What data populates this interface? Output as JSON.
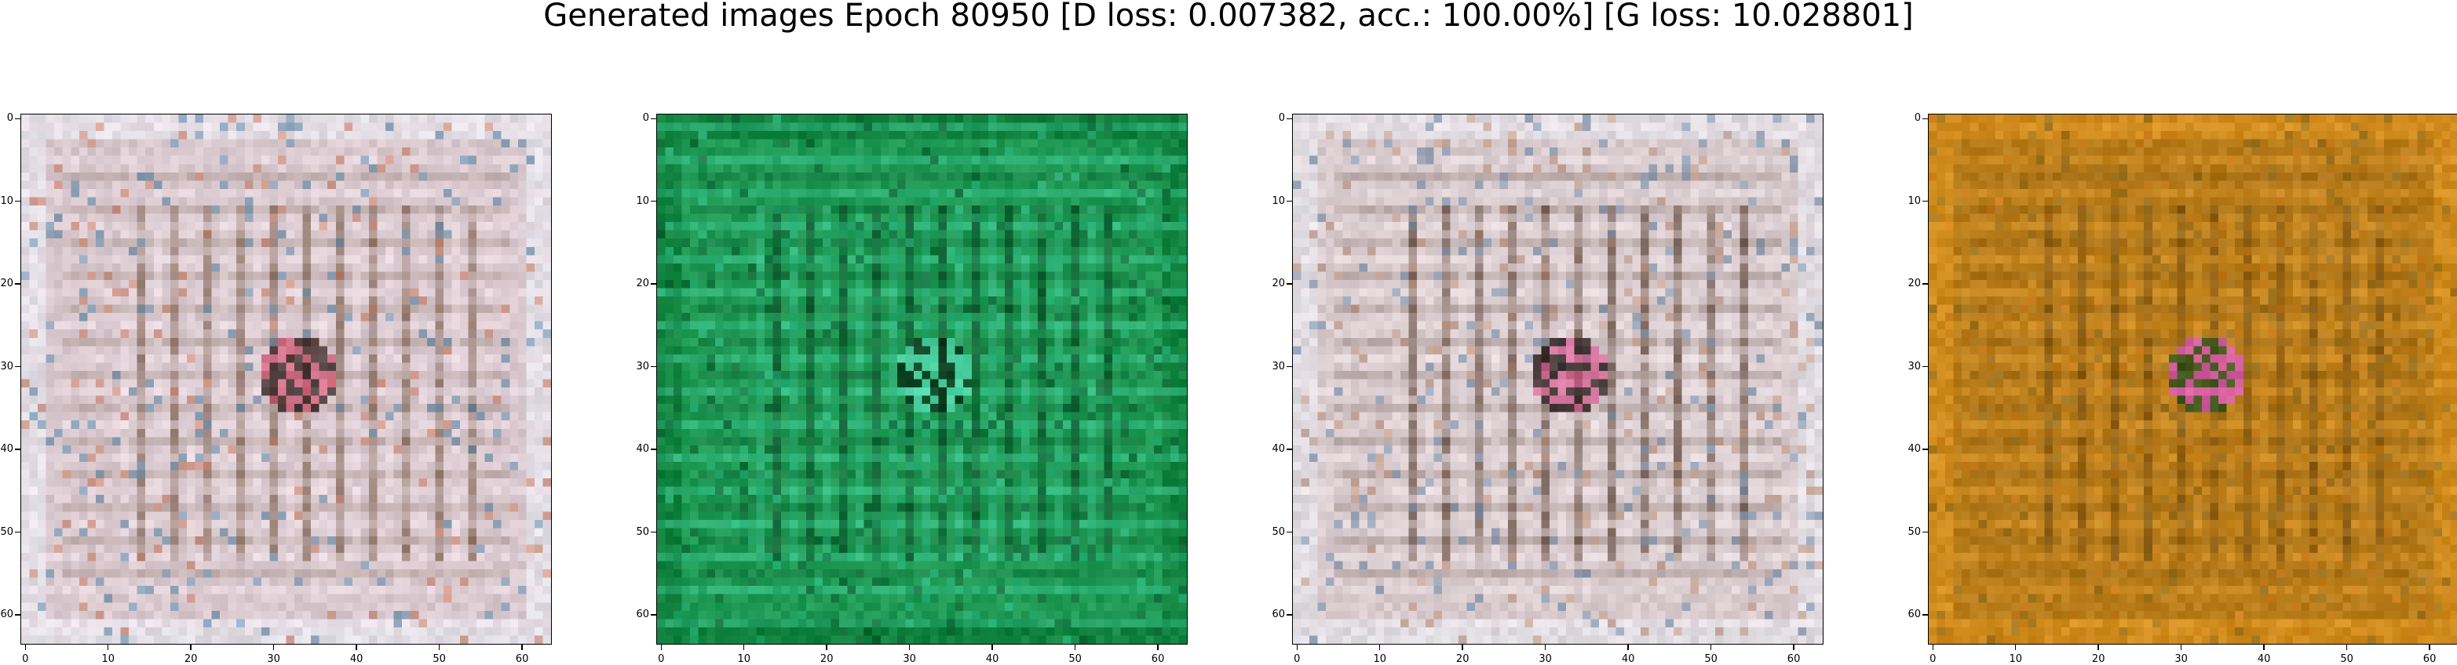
{
  "figure": {
    "title": "Generated images Epoch 80950 [D loss: 0.007382, acc.: 100.00%] [G loss: 10.028801]"
  },
  "panels": [
    {
      "name": "generated-image-1",
      "image_resolution": [
        64,
        64
      ],
      "colors": {
        "base": "#d9c9cf",
        "frame_light": "#e6e6ee",
        "stripe_dark": "#6f4f38",
        "stripe_light": "#f3e3ea",
        "accent_1": "#5d88a8",
        "accent_2": "#c9775a",
        "center_dark": "#2d1a1a",
        "center_accent": "#d04a6a"
      },
      "y_ticks": [
        "0",
        "10",
        "20",
        "30",
        "40",
        "50",
        "60"
      ],
      "x_ticks": [
        "0",
        "10",
        "20",
        "30",
        "40",
        "50",
        "60"
      ]
    },
    {
      "name": "generated-image-2",
      "image_resolution": [
        64,
        64
      ],
      "colors": {
        "base": "#1f9a55",
        "frame_light": "#0b7a36",
        "stripe_dark": "#0a3f1f",
        "stripe_light": "#47d6a8",
        "accent_1": "#0d5c2e",
        "accent_2": "#31c38a",
        "center_dark": "#062a14",
        "center_accent": "#5ee8c0"
      },
      "y_ticks": [
        "0",
        "10",
        "20",
        "30",
        "40",
        "50",
        "60"
      ],
      "x_ticks": [
        "0",
        "10",
        "20",
        "30",
        "40",
        "50",
        "60"
      ]
    },
    {
      "name": "generated-image-3",
      "image_resolution": [
        64,
        64
      ],
      "colors": {
        "base": "#d8cacd",
        "frame_light": "#e3e3ea",
        "stripe_dark": "#4a2e1e",
        "stripe_light": "#f1e6ea",
        "accent_1": "#6f8aa6",
        "accent_2": "#b88a70",
        "center_dark": "#1e1010",
        "center_accent": "#d64f88"
      },
      "y_ticks": [
        "0",
        "10",
        "20",
        "30",
        "40",
        "50",
        "60"
      ],
      "x_ticks": [
        "0",
        "10",
        "20",
        "30",
        "40",
        "50",
        "60"
      ]
    },
    {
      "name": "generated-image-4",
      "image_resolution": [
        64,
        64
      ],
      "colors": {
        "base": "#b87c1a",
        "frame_light": "#d9911e",
        "stripe_dark": "#6e4a12",
        "stripe_light": "#e09a2c",
        "accent_1": "#8a6a1e",
        "accent_2": "#d37e1c",
        "center_dark": "#1f4d1c",
        "center_accent": "#e04ee0"
      },
      "y_ticks": [
        "0",
        "10",
        "20",
        "30",
        "40",
        "50",
        "60"
      ],
      "x_ticks": [
        "0",
        "10",
        "20",
        "30",
        "40",
        "50",
        "60"
      ]
    }
  ]
}
